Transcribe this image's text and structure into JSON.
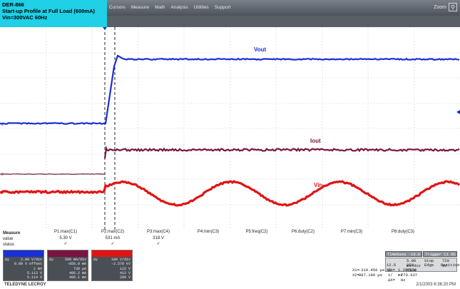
{
  "title": {
    "line1": "DER-866",
    "line2": "Start-up Profile at Full Load (600mA)",
    "line3": "Vin=300VAC 60Hz"
  },
  "menu": [
    "Cursors",
    "Measure",
    "Math",
    "Analysis",
    "Utilities",
    "Support"
  ],
  "zoom_label": "Zoom",
  "traces": {
    "vout": "Vout",
    "iout": "Iout",
    "vin": "Vin"
  },
  "trace_colors": {
    "vout": "#1a2fd6",
    "iout": "#7a1440",
    "vin": "#e01414",
    "iout_ref": "#6a1a3a"
  },
  "measure": {
    "row_labels": [
      "Measure",
      "value",
      "status"
    ],
    "params": [
      {
        "name": "P1:max(C1)",
        "value": "5.30 V",
        "status": "✓"
      },
      {
        "name": "P2:max(C2)",
        "value": "531 mA",
        "status": "✓"
      },
      {
        "name": "P3:max(C4)",
        "value": "318 V",
        "status": "✓"
      },
      {
        "name": "P4:min(C3)",
        "value": "",
        "status": ""
      },
      {
        "name": "P5:freq(C2)",
        "value": "",
        "status": ""
      },
      {
        "name": "P6:duty(C2)",
        "value": "",
        "status": ""
      },
      {
        "name": "P7:min(C3)",
        "value": "",
        "status": ""
      },
      {
        "name": "P8:duty(C3)",
        "value": "",
        "status": ""
      }
    ]
  },
  "descriptors": [
    {
      "tag": "C1",
      "rows": [
        "2.00 V/div",
        "0.00 V offset",
        "2 mV",
        "5.113 V",
        "5.114 V"
      ],
      "left": [
        "",
        "",
        "",
        "Δy",
        ""
      ]
    },
    {
      "tag": "C2",
      "rows": [
        "500 mA/div",
        "-856.0 mA",
        "730 µA",
        "486.2 mA",
        "486.1 mA"
      ],
      "left": [
        "",
        "",
        "",
        "",
        "Δy"
      ]
    },
    {
      "tag": "C4",
      "rows": [
        "100 V/div",
        "-2.570 kV",
        "122 V",
        "412 V",
        "289 V"
      ],
      "left": [
        "",
        "",
        "",
        "Δy",
        ""
      ]
    }
  ],
  "timebase": {
    "label_tb": "Timebase",
    "tb_val": "-16.0 ms",
    "label_trig": "Trigger",
    "trig_val": "C1 DC",
    "tb_div": "5.00 ms/div",
    "samples": "12.5 kS",
    "rate": "250 kS/s",
    "stop": "Stop",
    "level": "720 mV",
    "edge": "Edge",
    "slope": "Positive",
    "x1": "X1=",
    "x1v": "-310.456 µs",
    "dx": "ΔX=",
    "dxv": "1.297636 ms",
    "x2": "X2=",
    "x2v": "987.180 µs",
    "fdx": "1/ΔX=",
    "fdxv": "770.637 Hz"
  },
  "brand": "TELEDYNE LECROY",
  "timestamp": "2/1/2003 6:36:20 PM"
}
